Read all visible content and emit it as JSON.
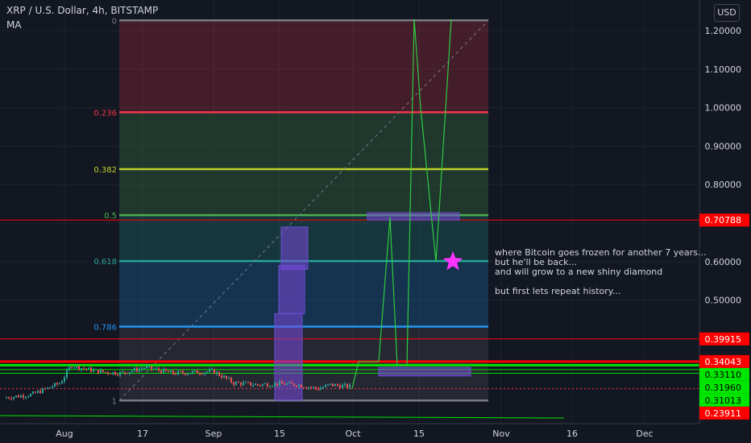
{
  "header": {
    "symbol_line": "XRP / U.S. Dollar, 4h, BITSTAMP",
    "indicator": "MA",
    "currency_button": "USD"
  },
  "annotation": {
    "lines": [
      "where Bitcoin goes frozen for another 7 years...",
      "but he'll be back...",
      "and will grow to a new shiny diamond",
      "",
      "but first lets repeat history..."
    ]
  },
  "chart_data": {
    "type": "line",
    "title": "XRP / U.S. Dollar, 4h, BITSTAMP",
    "y_axis": {
      "ticks": [
        "1.20000",
        "1.10000",
        "1.00000",
        "0.90000",
        "0.80000",
        "0.70000",
        "0.60000",
        "0.50000"
      ],
      "ylim": [
        0.22,
        1.26
      ]
    },
    "x_axis": {
      "ticks": [
        "Aug",
        "17",
        "Sep",
        "15",
        "Oct",
        "15",
        "Nov",
        "16",
        "Dec"
      ]
    },
    "fib_levels": [
      {
        "ratio": "0",
        "price": 1.2266,
        "color": "#787b86"
      },
      {
        "ratio": "0.236",
        "price": 0.9878,
        "color": "#f23645"
      },
      {
        "ratio": "0.382",
        "price": 0.8401,
        "color": "#c0d12b"
      },
      {
        "ratio": "0.5",
        "price": 0.7207,
        "color": "#4caf50"
      },
      {
        "ratio": "0.618",
        "price": 0.6013,
        "color": "#26a69a"
      },
      {
        "ratio": "0.786",
        "price": 0.4313,
        "color": "#2196f3"
      },
      {
        "ratio": "1",
        "price": 0.2391,
        "color": "#787b86"
      }
    ],
    "price_labels": [
      {
        "text": "0.70788",
        "value": 0.70788,
        "color": "#ff0000",
        "text_color": "#ffffff"
      },
      {
        "text": "0.39915",
        "value": 0.39915,
        "color": "#ff0000",
        "text_color": "#ffffff"
      },
      {
        "text": "0.34043",
        "value": 0.34043,
        "color": "#ff0000",
        "text_color": "#ffffff"
      },
      {
        "text": "0.33110",
        "value": 0.3311,
        "color": "#00e600",
        "text_color": "#000000"
      },
      {
        "text": "0.31960",
        "value": 0.3196,
        "color": "#00e600",
        "text_color": "#000000"
      },
      {
        "text": "0.31013",
        "value": 0.31013,
        "color": "#00e600",
        "text_color": "#000000"
      },
      {
        "text": "0.23911",
        "value": 0.23911,
        "color": "#ff0000",
        "text_color": "#ffffff"
      }
    ]
  }
}
